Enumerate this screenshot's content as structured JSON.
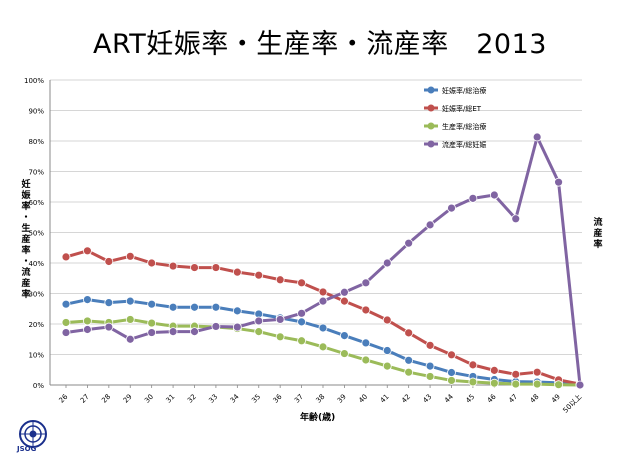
{
  "title": "ART妊娠率・生産率・流産率　2013",
  "logo_text": "JSOG",
  "chart_data": {
    "type": "line",
    "title": "ART妊娠率・生産率・流産率　2013",
    "xlabel": "年齢(歳)",
    "ylabel_left": "妊娠率・生産率・流産率",
    "ylabel_right": "流産率",
    "ylim": [
      0,
      100
    ],
    "y_ticks": [
      "0%",
      "10%",
      "20%",
      "30%",
      "40%",
      "50%",
      "60%",
      "70%",
      "80%",
      "90%",
      "100%"
    ],
    "grid": true,
    "legend_position": "top-right",
    "categories": [
      "26",
      "27",
      "28",
      "29",
      "30",
      "31",
      "32",
      "33",
      "34",
      "35",
      "36",
      "37",
      "38",
      "39",
      "40",
      "41",
      "42",
      "43",
      "44",
      "45",
      "46",
      "47",
      "48",
      "49",
      "50以上"
    ],
    "series": [
      {
        "name": "妊娠率/総治療",
        "color": "#4a7ebb",
        "values": [
          26.5,
          28,
          27,
          27.5,
          26.5,
          25.5,
          25.5,
          25.5,
          24.3,
          23.3,
          22,
          20.7,
          18.7,
          16.2,
          13.8,
          11.3,
          8.1,
          6.2,
          4.1,
          2.8,
          1.8,
          1.1,
          1,
          0.7,
          0.2
        ]
      },
      {
        "name": "妊娠率/総ET",
        "color": "#c0504d",
        "values": [
          42,
          44,
          40.5,
          42.2,
          40,
          39,
          38.5,
          38.5,
          37,
          36,
          34.5,
          33.5,
          30.5,
          27.5,
          24.6,
          21.3,
          17.1,
          13,
          9.9,
          6.6,
          4.8,
          3.5,
          4.2,
          1.7,
          0.3
        ]
      },
      {
        "name": "生産率/総治療",
        "color": "#9bbb59",
        "values": [
          20.5,
          21,
          20.5,
          21.5,
          20.3,
          19.3,
          19.3,
          19,
          18.5,
          17.5,
          15.8,
          14.5,
          12.5,
          10.3,
          8.2,
          6.2,
          4.2,
          2.8,
          1.5,
          1,
          0.6,
          0.3,
          0.3,
          0.1,
          0
        ]
      },
      {
        "name": "流産率/総妊娠",
        "color": "#8064a2",
        "values": [
          17.2,
          18.2,
          19,
          15,
          17.2,
          17.5,
          17.5,
          19.2,
          19,
          21,
          21.5,
          23.5,
          27.5,
          30.4,
          33.5,
          40,
          46.5,
          52.5,
          58,
          61.2,
          62.3,
          54.5,
          81.3,
          66.5,
          0
        ]
      }
    ]
  }
}
